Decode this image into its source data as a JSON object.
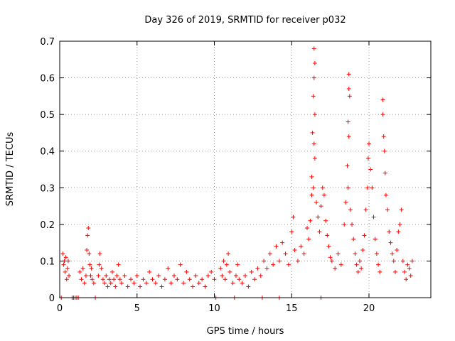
{
  "chart_data": {
    "type": "scatter",
    "title": "Day 326 of 2019, SRMTID for receiver p032",
    "xlabel": "GPS time / hours",
    "ylabel": "SRMTID / TECUs",
    "xlim": [
      0,
      24
    ],
    "ylim": [
      0,
      0.7
    ],
    "x_ticks": [
      0,
      5,
      10,
      15,
      20
    ],
    "y_ticks": [
      0,
      0.1,
      0.2,
      0.3,
      0.4,
      0.5,
      0.6,
      0.7
    ],
    "x_tick_labels": [
      "0",
      "5",
      "10",
      "15",
      "20"
    ],
    "y_tick_labels": [
      "0",
      "0.1",
      "0.2",
      "0.3",
      "0.4",
      "0.5",
      "0.6",
      "0.7"
    ],
    "grid": true,
    "marker": "+",
    "series": [
      {
        "name": "SRMTID",
        "color": "#ff0000",
        "points": [
          [
            0.2,
            0.12
          ],
          [
            0.25,
            0.09
          ],
          [
            0.3,
            0.1
          ],
          [
            0.35,
            0.07
          ],
          [
            0.4,
            0.11
          ],
          [
            0.45,
            0.05
          ],
          [
            0.5,
            0.08
          ],
          [
            0.55,
            0.1
          ],
          [
            0.6,
            0.06
          ],
          [
            1.3,
            0.07
          ],
          [
            1.4,
            0.05
          ],
          [
            1.5,
            0.08
          ],
          [
            1.6,
            0.04
          ],
          [
            1.7,
            0.06
          ],
          [
            1.75,
            0.13
          ],
          [
            1.8,
            0.17
          ],
          [
            1.85,
            0.19
          ],
          [
            1.9,
            0.12
          ],
          [
            1.95,
            0.09
          ],
          [
            2.0,
            0.06
          ],
          [
            2.05,
            0.08
          ],
          [
            2.1,
            0.05
          ],
          [
            2.2,
            0.04
          ],
          [
            2.5,
            0.06
          ],
          [
            2.55,
            0.09
          ],
          [
            2.6,
            0.12
          ],
          [
            2.7,
            0.08
          ],
          [
            2.8,
            0.05
          ],
          [
            2.9,
            0.04
          ],
          [
            3.0,
            0.06
          ],
          [
            3.1,
            0.03
          ],
          [
            3.2,
            0.05
          ],
          [
            3.3,
            0.04
          ],
          [
            3.4,
            0.07
          ],
          [
            3.5,
            0.05
          ],
          [
            3.6,
            0.03
          ],
          [
            3.7,
            0.06
          ],
          [
            3.8,
            0.09
          ],
          [
            3.9,
            0.05
          ],
          [
            4.0,
            0.04
          ],
          [
            4.2,
            0.06
          ],
          [
            4.4,
            0.03
          ],
          [
            4.6,
            0.05
          ],
          [
            4.8,
            0.04
          ],
          [
            5.0,
            0.06
          ],
          [
            5.2,
            0.03
          ],
          [
            5.4,
            0.05
          ],
          [
            5.6,
            0.04
          ],
          [
            5.8,
            0.07
          ],
          [
            6.0,
            0.05
          ],
          [
            6.2,
            0.04
          ],
          [
            6.4,
            0.06
          ],
          [
            6.6,
            0.03
          ],
          [
            6.8,
            0.05
          ],
          [
            7.0,
            0.08
          ],
          [
            7.2,
            0.04
          ],
          [
            7.4,
            0.06
          ],
          [
            7.6,
            0.05
          ],
          [
            7.8,
            0.09
          ],
          [
            8.0,
            0.04
          ],
          [
            8.2,
            0.07
          ],
          [
            8.4,
            0.05
          ],
          [
            8.6,
            0.03
          ],
          [
            8.8,
            0.06
          ],
          [
            9.0,
            0.04
          ],
          [
            9.2,
            0.05
          ],
          [
            9.4,
            0.03
          ],
          [
            9.6,
            0.06
          ],
          [
            9.8,
            0.07
          ],
          [
            10.0,
            0.05
          ],
          [
            10.4,
            0.08
          ],
          [
            10.5,
            0.06
          ],
          [
            10.6,
            0.1
          ],
          [
            10.7,
            0.05
          ],
          [
            10.8,
            0.09
          ],
          [
            10.9,
            0.12
          ],
          [
            11.0,
            0.07
          ],
          [
            11.2,
            0.04
          ],
          [
            11.4,
            0.06
          ],
          [
            11.5,
            0.09
          ],
          [
            11.6,
            0.05
          ],
          [
            11.8,
            0.04
          ],
          [
            12.0,
            0.06
          ],
          [
            12.2,
            0.03
          ],
          [
            12.4,
            0.07
          ],
          [
            12.6,
            0.05
          ],
          [
            12.8,
            0.08
          ],
          [
            13.0,
            0.06
          ],
          [
            13.2,
            0.1
          ],
          [
            13.4,
            0.08
          ],
          [
            13.6,
            0.12
          ],
          [
            13.8,
            0.09
          ],
          [
            14.0,
            0.14
          ],
          [
            14.2,
            0.1
          ],
          [
            14.4,
            0.15
          ],
          [
            14.6,
            0.12
          ],
          [
            14.8,
            0.09
          ],
          [
            15.0,
            0.18
          ],
          [
            15.1,
            0.22
          ],
          [
            15.2,
            0.13
          ],
          [
            15.4,
            0.1
          ],
          [
            15.6,
            0.14
          ],
          [
            15.8,
            0.12
          ],
          [
            16.0,
            0.19
          ],
          [
            16.1,
            0.16
          ],
          [
            16.2,
            0.21
          ],
          [
            16.3,
            0.28
          ],
          [
            16.45,
            0.68
          ],
          [
            16.5,
            0.64
          ],
          [
            16.45,
            0.6
          ],
          [
            16.4,
            0.55
          ],
          [
            16.5,
            0.5
          ],
          [
            16.35,
            0.45
          ],
          [
            16.45,
            0.42
          ],
          [
            16.5,
            0.38
          ],
          [
            16.3,
            0.33
          ],
          [
            16.4,
            0.3
          ],
          [
            16.6,
            0.26
          ],
          [
            16.7,
            0.22
          ],
          [
            16.8,
            0.18
          ],
          [
            16.9,
            0.25
          ],
          [
            17.0,
            0.3
          ],
          [
            17.1,
            0.28
          ],
          [
            17.2,
            0.21
          ],
          [
            17.3,
            0.17
          ],
          [
            17.4,
            0.14
          ],
          [
            17.5,
            0.11
          ],
          [
            17.6,
            0.1
          ],
          [
            17.8,
            0.08
          ],
          [
            18.0,
            0.12
          ],
          [
            18.2,
            0.09
          ],
          [
            18.4,
            0.2
          ],
          [
            18.5,
            0.26
          ],
          [
            18.7,
            0.61
          ],
          [
            18.7,
            0.57
          ],
          [
            18.75,
            0.55
          ],
          [
            18.65,
            0.48
          ],
          [
            18.7,
            0.44
          ],
          [
            18.6,
            0.36
          ],
          [
            18.65,
            0.3
          ],
          [
            18.8,
            0.24
          ],
          [
            18.9,
            0.2
          ],
          [
            19.0,
            0.16
          ],
          [
            19.1,
            0.12
          ],
          [
            19.2,
            0.09
          ],
          [
            19.3,
            0.07
          ],
          [
            19.4,
            0.1
          ],
          [
            19.5,
            0.08
          ],
          [
            19.6,
            0.13
          ],
          [
            19.7,
            0.17
          ],
          [
            19.8,
            0.24
          ],
          [
            19.9,
            0.3
          ],
          [
            19.95,
            0.38
          ],
          [
            20.0,
            0.42
          ],
          [
            20.1,
            0.35
          ],
          [
            20.2,
            0.3
          ],
          [
            20.3,
            0.22
          ],
          [
            20.4,
            0.16
          ],
          [
            20.5,
            0.12
          ],
          [
            20.6,
            0.09
          ],
          [
            20.7,
            0.07
          ],
          [
            20.9,
            0.54
          ],
          [
            20.9,
            0.5
          ],
          [
            20.95,
            0.44
          ],
          [
            21.0,
            0.4
          ],
          [
            21.05,
            0.34
          ],
          [
            21.1,
            0.28
          ],
          [
            21.2,
            0.24
          ],
          [
            21.3,
            0.18
          ],
          [
            21.4,
            0.15
          ],
          [
            21.5,
            0.12
          ],
          [
            21.6,
            0.1
          ],
          [
            21.7,
            0.07
          ],
          [
            21.8,
            0.13
          ],
          [
            21.9,
            0.18
          ],
          [
            22.0,
            0.2
          ],
          [
            22.1,
            0.24
          ],
          [
            22.2,
            0.1
          ],
          [
            22.3,
            0.07
          ],
          [
            22.4,
            0.05
          ],
          [
            22.5,
            0.09
          ],
          [
            22.6,
            0.08
          ],
          [
            22.7,
            0.06
          ],
          [
            22.8,
            0.1
          ],
          [
            0.1,
            0
          ],
          [
            0.8,
            0
          ],
          [
            0.9,
            0
          ],
          [
            1.0,
            0
          ],
          [
            1.1,
            0
          ],
          [
            1.2,
            0
          ],
          [
            2.3,
            0
          ],
          [
            10.1,
            0
          ],
          [
            11.3,
            0
          ],
          [
            13.1,
            0
          ],
          [
            14.2,
            0
          ],
          [
            16.9,
            0
          ]
        ]
      }
    ]
  }
}
